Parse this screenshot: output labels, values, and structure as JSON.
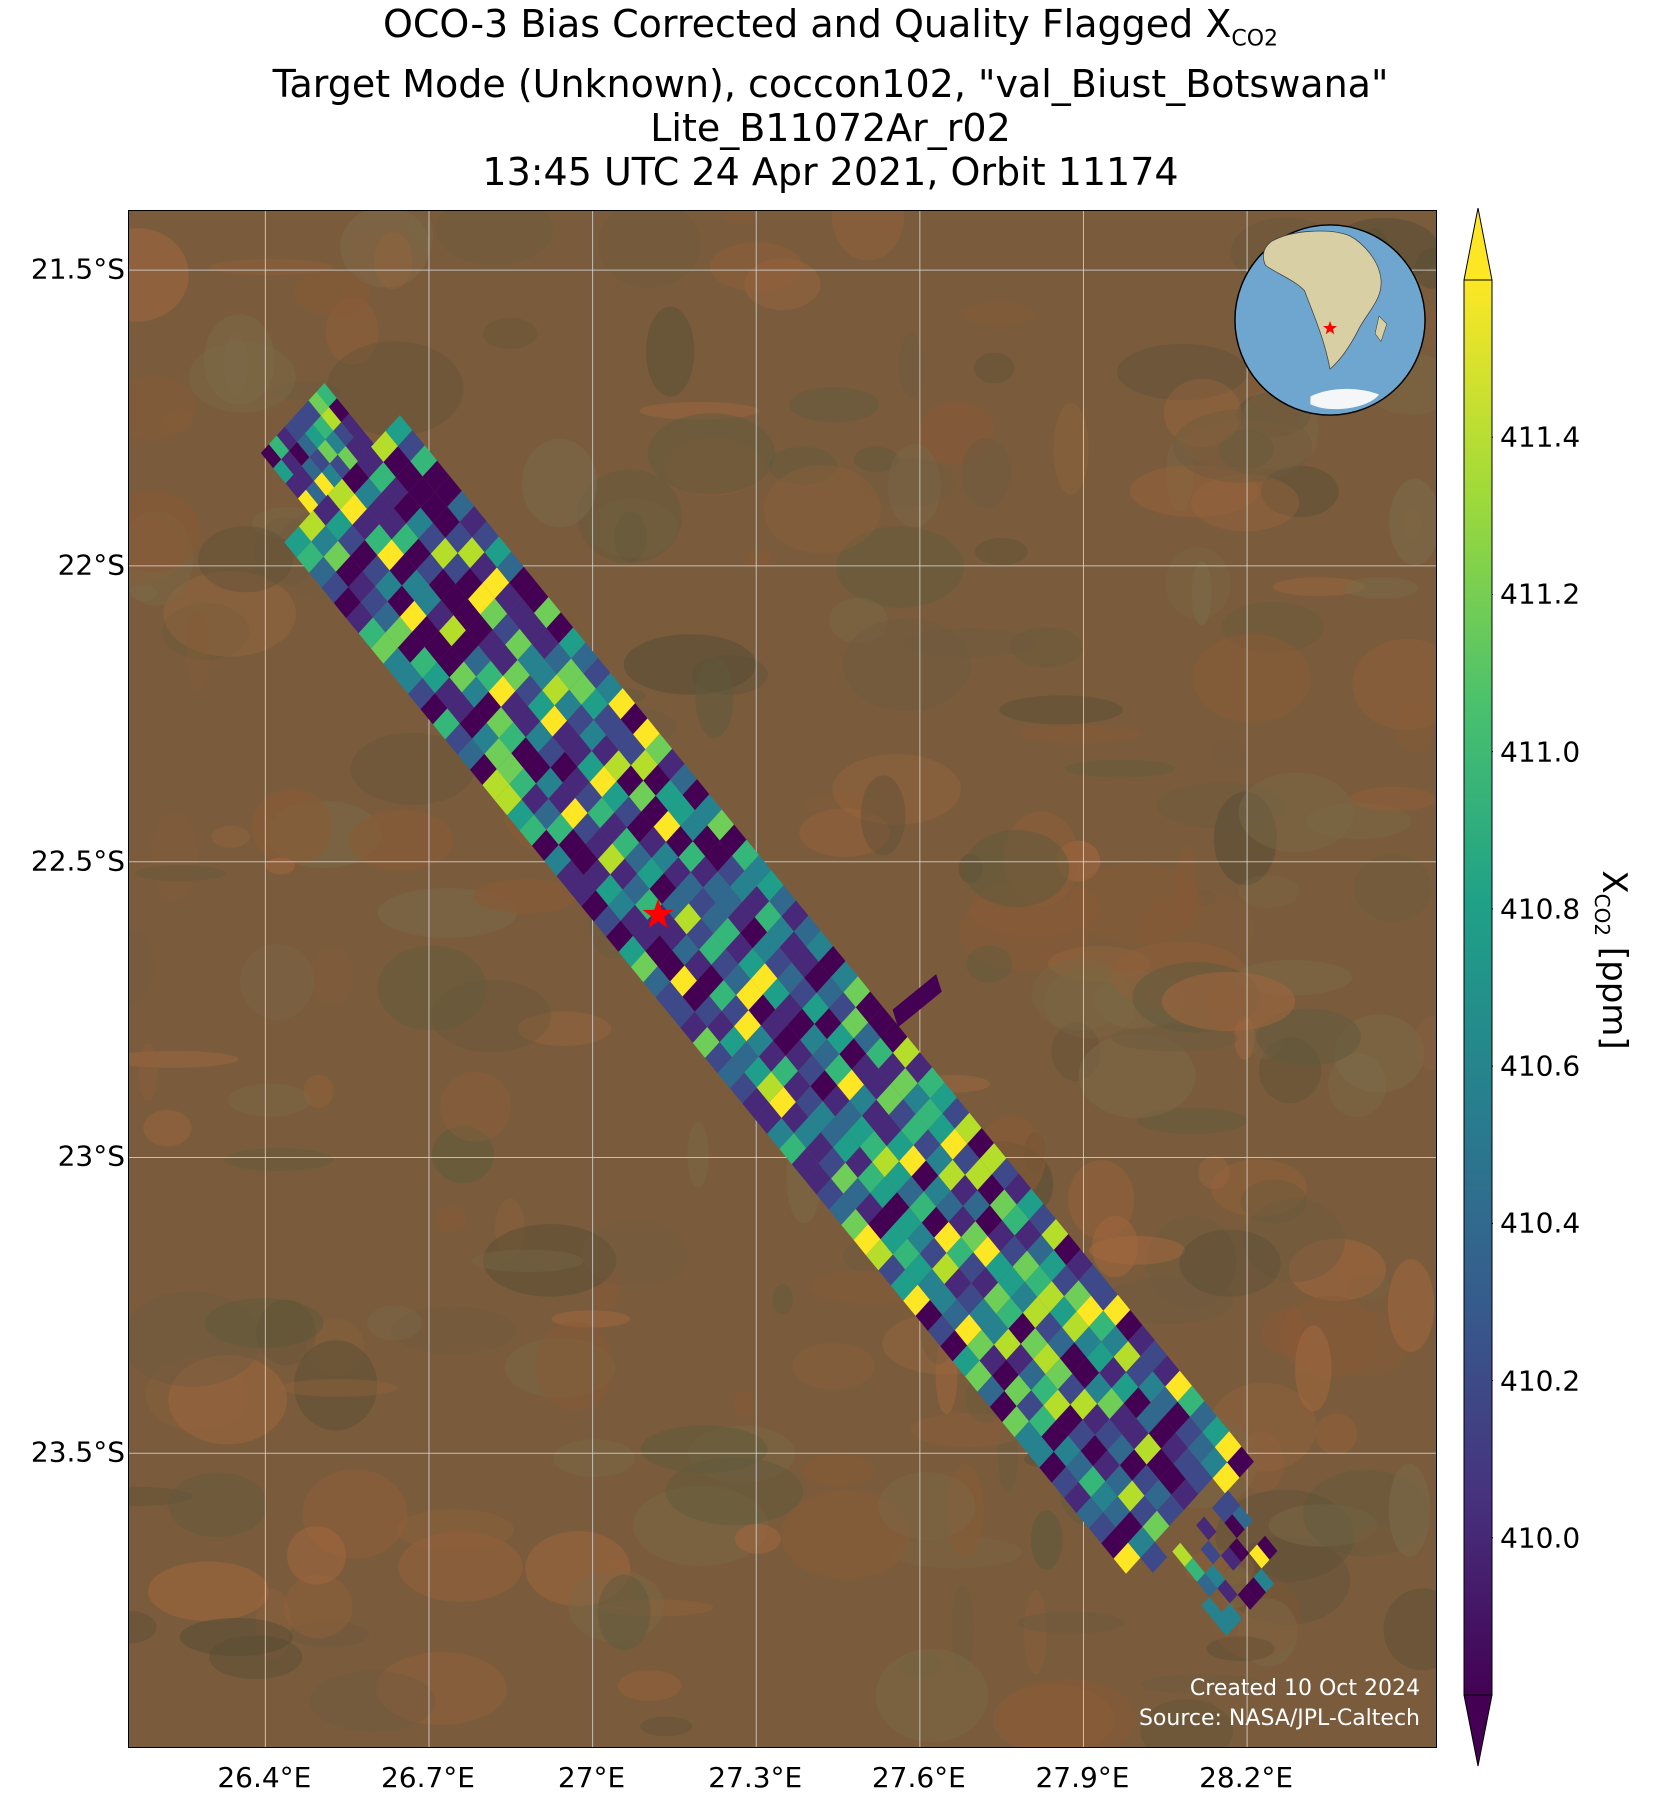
{
  "title": {
    "line1_prefix": "OCO-3 Bias Corrected and Quality Flagged X",
    "line1_sub": "CO2",
    "line2": "Target Mode (Unknown), coccon102, \"val_Biust_Botswana\"",
    "line3": "Lite_B11072Ar_r02",
    "line4": "13:45 UTC 24 Apr 2021, Orbit 11174"
  },
  "map": {
    "lon_range": [
      26.15,
      28.55
    ],
    "lat_range": [
      -24.0,
      -21.4
    ],
    "x_ticks": [
      {
        "value": 26.4,
        "label": "26.4°E"
      },
      {
        "value": 26.7,
        "label": "26.7°E"
      },
      {
        "value": 27.0,
        "label": "27°E"
      },
      {
        "value": 27.3,
        "label": "27.3°E"
      },
      {
        "value": 27.6,
        "label": "27.6°E"
      },
      {
        "value": 27.9,
        "label": "27.9°E"
      },
      {
        "value": 28.2,
        "label": "28.2°E"
      }
    ],
    "y_ticks": [
      {
        "value": -21.5,
        "label": "21.5°S"
      },
      {
        "value": -22.0,
        "label": "22°S"
      },
      {
        "value": -22.5,
        "label": "22.5°S"
      },
      {
        "value": -23.0,
        "label": "23°S"
      },
      {
        "value": -23.5,
        "label": "23.5°S"
      }
    ],
    "target_site": {
      "name": "val_Biust_Botswana",
      "lon": 27.12,
      "lat": -22.59,
      "marker": "red-star"
    },
    "swath": {
      "start": {
        "lon": 26.45,
        "lat": -21.75
      },
      "end": {
        "lon": 28.22,
        "lat": -23.75
      }
    },
    "credit_line1": "Created 10 Oct 2024",
    "credit_line2": "Source: NASA/JPL-Caltech",
    "background": "satellite-imagery"
  },
  "colorbar": {
    "colormap": "viridis",
    "min": 409.8,
    "max": 411.6,
    "ticks": [
      "410.0",
      "410.2",
      "410.4",
      "410.6",
      "410.8",
      "411.0",
      "411.2",
      "411.4"
    ],
    "label_prefix": "X",
    "label_sub": "CO2",
    "label_suffix": " [ppm]",
    "extend": "both"
  },
  "inset_globe": {
    "marker": "red-star",
    "region": "southern-africa"
  }
}
